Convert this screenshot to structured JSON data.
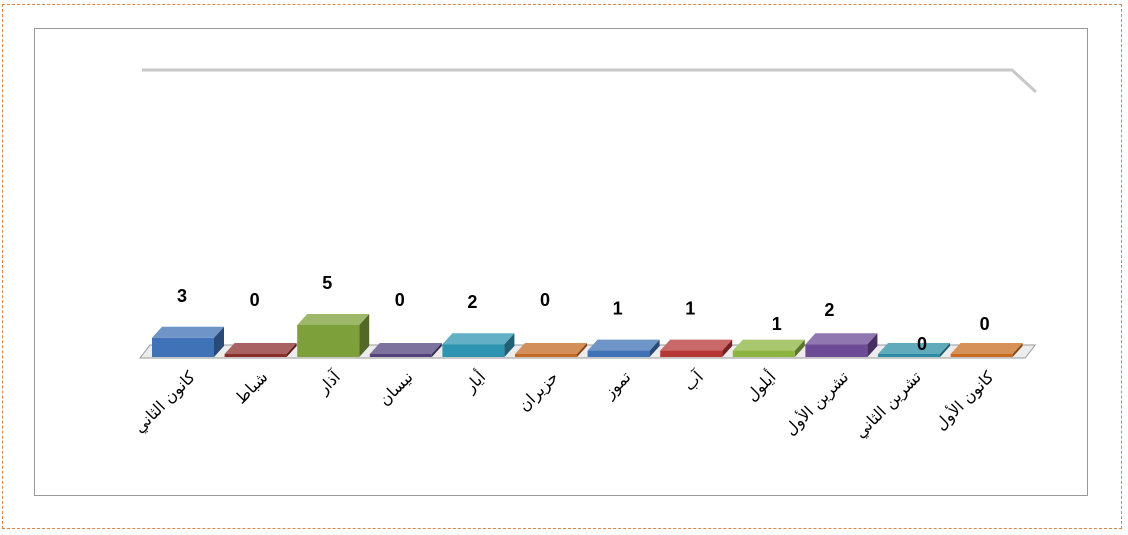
{
  "chart_data": {
    "type": "bar",
    "title": "",
    "xlabel": "",
    "ylabel": "",
    "ylim": [
      0,
      5
    ],
    "grid": false,
    "legend": "none",
    "categories": [
      "كانون الثاني",
      "شباط",
      "آذار",
      "نيسان",
      "أيار",
      "حزيران",
      "تموز",
      "آب",
      "أيلول",
      "تشرين الأول",
      "تشرين الثاني",
      "كانون الأول"
    ],
    "values": [
      3,
      0,
      5,
      0,
      2,
      0,
      1,
      1,
      1,
      2,
      0,
      0
    ],
    "colors": [
      "#3f72b6",
      "#8a2e2c",
      "#7ea03a",
      "#52417d",
      "#2f94b1",
      "#c46a22",
      "#3f72b6",
      "#b63535",
      "#8cb43f",
      "#6c4a96",
      "#2c8ea6",
      "#c86c22"
    ]
  }
}
